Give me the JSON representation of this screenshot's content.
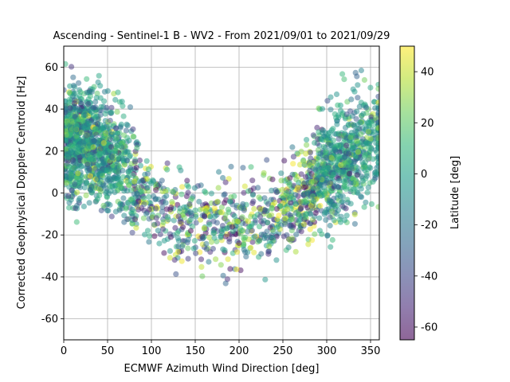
{
  "chart_data": {
    "type": "scatter",
    "title": "Ascending - Sentinel-1 B - WV2 - From 2021/09/01 to 2021/09/29",
    "xlabel": "ECMWF Azimuth Wind Direction [deg]",
    "ylabel": "Corrected Geophysical Doppler Centroid [Hz]",
    "xlim": [
      0,
      360
    ],
    "ylim": [
      -70,
      70
    ],
    "xticks": [
      0,
      50,
      100,
      150,
      200,
      250,
      300,
      350
    ],
    "yticks": [
      -60,
      -40,
      -20,
      0,
      20,
      40,
      60
    ],
    "grid": true,
    "colorbar": {
      "label": "Latitude [deg]",
      "range": [
        -65,
        50
      ],
      "ticks": [
        -60,
        -40,
        -20,
        0,
        20,
        40
      ],
      "colormap": "viridis"
    },
    "point_alpha": 0.5,
    "trend": {
      "description": "Points follow a U-shaped dependence on wind direction",
      "x": [
        0,
        25,
        50,
        75,
        100,
        125,
        150,
        175,
        200,
        225,
        250,
        275,
        300,
        325,
        350,
        360
      ],
      "y": [
        22,
        26,
        18,
        8,
        -4,
        -12,
        -15,
        -16,
        -15,
        -14,
        -10,
        0,
        10,
        18,
        24,
        25
      ]
    }
  }
}
